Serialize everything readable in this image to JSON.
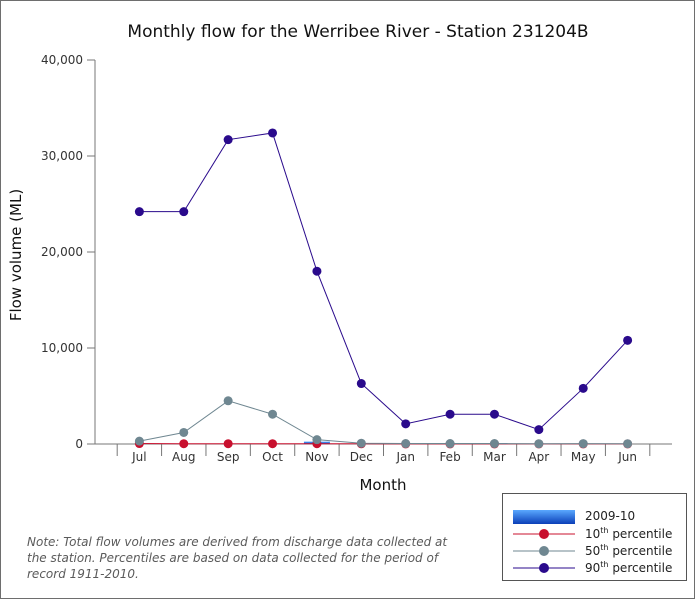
{
  "chart_data": {
    "type": "line",
    "title": "Monthly flow for the Werribee River - Station 231204B",
    "xlabel": "Month",
    "ylabel": "Flow volume (ML)",
    "ylim": [
      0,
      40000
    ],
    "yticks": [
      0,
      10000,
      20000,
      30000,
      40000
    ],
    "ytick_labels": [
      "0",
      "10,000",
      "20,000",
      "30,000",
      "40,000"
    ],
    "categories": [
      "Jul",
      "Aug",
      "Sep",
      "Oct",
      "Nov",
      "Dec",
      "Jan",
      "Feb",
      "Mar",
      "Apr",
      "May",
      "Jun"
    ],
    "bars": {
      "name": "2009-10",
      "values": [
        0,
        0,
        0,
        0,
        250,
        0,
        0,
        0,
        80,
        0,
        0,
        0
      ],
      "color": "#1a5fd6"
    },
    "series": [
      {
        "name": "10th percentile",
        "superscript": "th",
        "base": "10",
        "color": "#c8102e",
        "values": [
          50,
          30,
          30,
          30,
          30,
          20,
          10,
          10,
          10,
          10,
          10,
          10
        ]
      },
      {
        "name": "50th percentile",
        "superscript": "th",
        "base": "50",
        "color": "#6f8791",
        "values": [
          300,
          1200,
          4500,
          3100,
          450,
          80,
          50,
          50,
          50,
          30,
          40,
          30
        ]
      },
      {
        "name": "90th percentile",
        "superscript": "th",
        "base": "90",
        "color": "#2a0a8c",
        "values": [
          24200,
          24200,
          31700,
          32400,
          18000,
          6300,
          2100,
          3100,
          3100,
          1500,
          5800,
          10800
        ]
      }
    ],
    "grid": false,
    "legend_position": "bottom-right"
  },
  "note": "Note: Total flow volumes are derived from discharge data collected at the station. Percentiles are based on data collected for the period of record 1911-2010.",
  "legend": {
    "bar_label": "2009-10",
    "p10_base": "10",
    "p10_sup": "th",
    "p10_rest": " percentile",
    "p50_base": "50",
    "p50_sup": "th",
    "p50_rest": " percentile",
    "p90_base": "90",
    "p90_sup": "th",
    "p90_rest": " percentile"
  }
}
